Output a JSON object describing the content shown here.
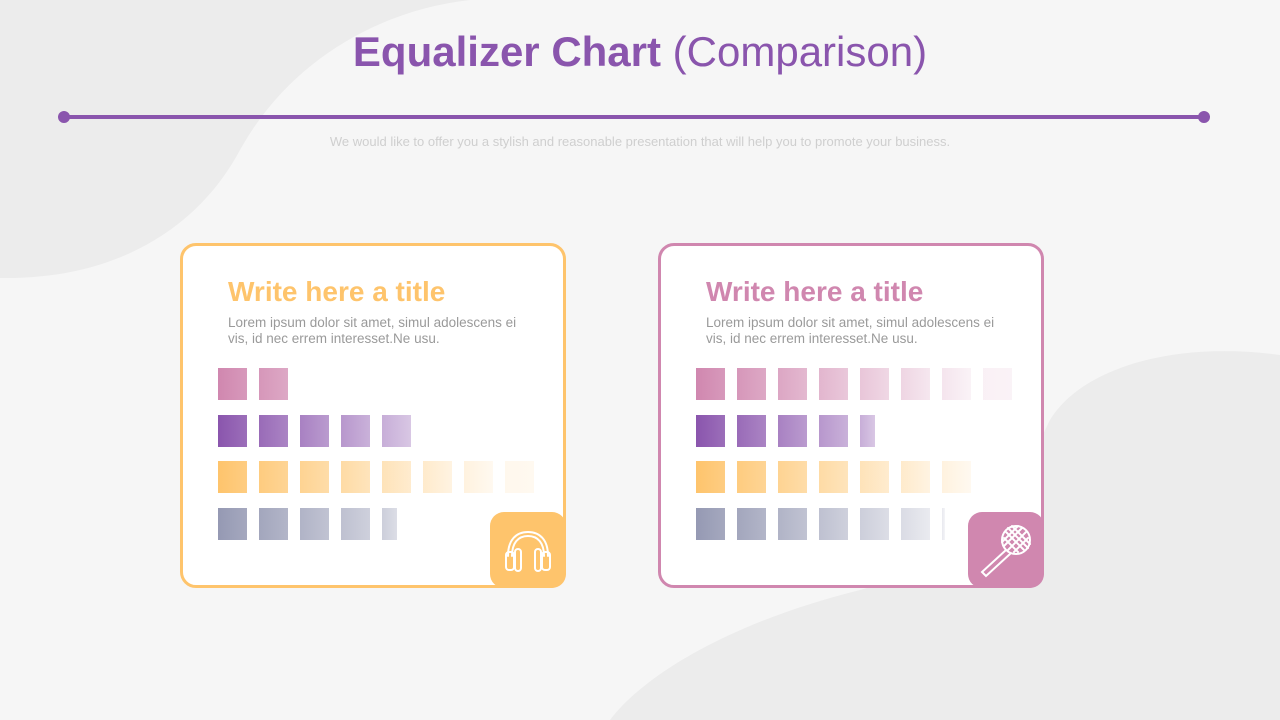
{
  "header": {
    "title_bold": "Equalizer Chart",
    "title_light": "(Comparison)",
    "subtitle": "We would like to offer you a stylish and reasonable presentation that will help you to promote your business."
  },
  "colors": {
    "accent": "#8a55ad",
    "card_left": "#fec46c",
    "card_right": "#d087af",
    "row_pink": "#d087af",
    "row_purple": "#8a55ad",
    "row_orange": "#fec46c",
    "row_slate": "#9599b3"
  },
  "cards": [
    {
      "title": "Write here a title",
      "text": "Lorem ipsum dolor sit amet, simul adolescens ei vis, id nec errem interesset.Ne usu.",
      "icon": "headphones-icon",
      "levels": [
        2,
        5,
        8,
        4.5
      ]
    },
    {
      "title": "Write here a title",
      "text": "Lorem ipsum dolor sit amet, simul adolescens ei vis, id nec errem interesset.Ne usu.",
      "icon": "microphone-icon",
      "levels": [
        8,
        4.5,
        7,
        6.1
      ]
    }
  ]
}
